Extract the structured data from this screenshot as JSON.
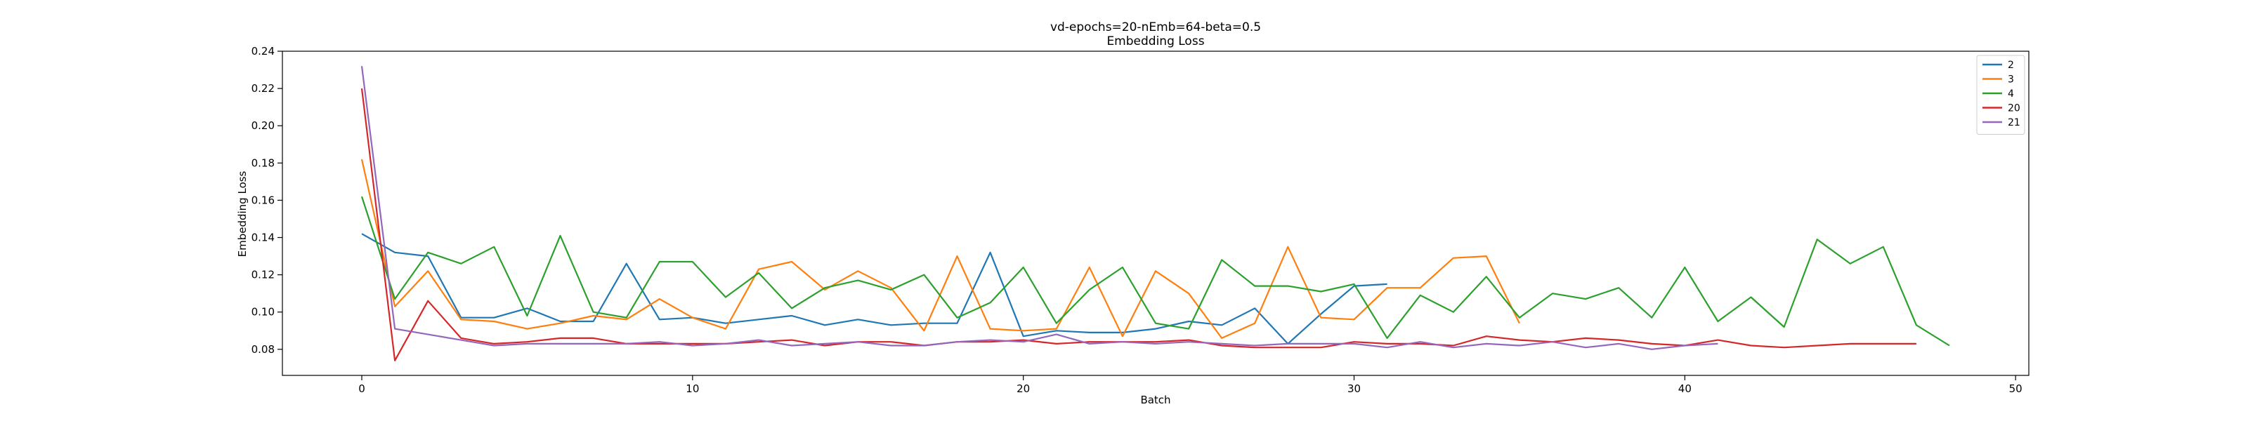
{
  "chart_data": {
    "type": "line",
    "title": "vd-epochs=20-nEmb=64-beta=0.5",
    "subtitle": "Embedding Loss",
    "xlabel": "Batch",
    "ylabel": "Embedding Loss",
    "xlim": [
      -2.4,
      50.4
    ],
    "ylim": [
      0.066,
      0.24
    ],
    "xticks": [
      0,
      10,
      20,
      30,
      40,
      50
    ],
    "yticks": [
      0.08,
      0.1,
      0.12,
      0.14,
      0.16,
      0.18,
      0.2,
      0.22,
      0.24
    ],
    "ytick_labels": [
      "0.08",
      "0.10",
      "0.12",
      "0.14",
      "0.16",
      "0.18",
      "0.20",
      "0.22",
      "0.24"
    ],
    "grid": false,
    "legend_position": "top-right",
    "series": [
      {
        "name": "2",
        "color": "#1f77b4",
        "values": [
          0.142,
          0.132,
          0.13,
          0.097,
          0.097,
          0.102,
          0.095,
          0.095,
          0.126,
          0.096,
          0.097,
          0.094,
          0.096,
          0.098,
          0.093,
          0.096,
          0.093,
          0.094,
          0.094,
          0.132,
          0.087,
          0.09,
          0.089,
          0.089,
          0.091,
          0.095,
          0.093,
          0.102,
          0.083,
          0.099,
          0.114,
          0.115
        ]
      },
      {
        "name": "3",
        "color": "#ff7f0e",
        "values": [
          0.182,
          0.103,
          0.122,
          0.096,
          0.095,
          0.091,
          0.094,
          0.098,
          0.096,
          0.107,
          0.097,
          0.091,
          0.123,
          0.127,
          0.112,
          0.122,
          0.113,
          0.09,
          0.13,
          0.091,
          0.09,
          0.091,
          0.124,
          0.087,
          0.122,
          0.11,
          0.086,
          0.094,
          0.135,
          0.097,
          0.096,
          0.113,
          0.113,
          0.129,
          0.13,
          0.094
        ]
      },
      {
        "name": "4",
        "color": "#2ca02c",
        "values": [
          0.162,
          0.107,
          0.132,
          0.126,
          0.135,
          0.098,
          0.141,
          0.1,
          0.097,
          0.127,
          0.127,
          0.108,
          0.121,
          0.102,
          0.113,
          0.117,
          0.112,
          0.12,
          0.097,
          0.105,
          0.124,
          0.094,
          0.112,
          0.124,
          0.094,
          0.091,
          0.128,
          0.114,
          0.114,
          0.111,
          0.115,
          0.086,
          0.109,
          0.1,
          0.119,
          0.097,
          0.11,
          0.107,
          0.113,
          0.097,
          0.124,
          0.095,
          0.108,
          0.092,
          0.139,
          0.126,
          0.135,
          0.093,
          0.082
        ]
      },
      {
        "name": "20",
        "color": "#d62728",
        "values": [
          0.22,
          0.074,
          0.106,
          0.086,
          0.083,
          0.084,
          0.086,
          0.086,
          0.083,
          0.083,
          0.083,
          0.083,
          0.084,
          0.085,
          0.082,
          0.084,
          0.084,
          0.082,
          0.084,
          0.084,
          0.085,
          0.083,
          0.084,
          0.084,
          0.084,
          0.085,
          0.082,
          0.081,
          0.081,
          0.081,
          0.084,
          0.083,
          0.083,
          0.082,
          0.087,
          0.085,
          0.084,
          0.086,
          0.085,
          0.083,
          0.082,
          0.085,
          0.082,
          0.081,
          0.082,
          0.083,
          0.083,
          0.083
        ]
      },
      {
        "name": "21",
        "color": "#9467bd",
        "values": [
          0.232,
          0.091,
          0.088,
          0.085,
          0.082,
          0.083,
          0.083,
          0.083,
          0.083,
          0.084,
          0.082,
          0.083,
          0.085,
          0.082,
          0.083,
          0.084,
          0.082,
          0.082,
          0.084,
          0.085,
          0.084,
          0.088,
          0.083,
          0.084,
          0.083,
          0.084,
          0.083,
          0.082,
          0.083,
          0.083,
          0.083,
          0.081,
          0.084,
          0.081,
          0.083,
          0.082,
          0.084,
          0.081,
          0.083,
          0.08,
          0.082,
          0.083
        ]
      }
    ]
  }
}
